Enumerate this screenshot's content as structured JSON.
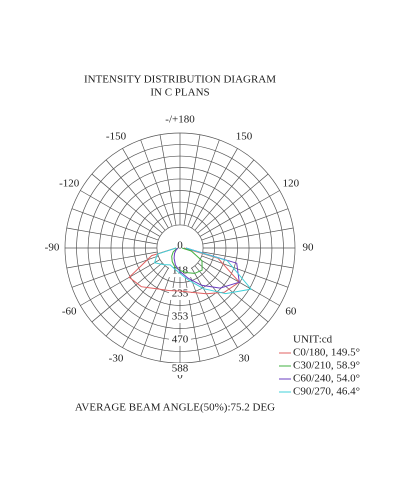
{
  "chart_data": {
    "type": "polar",
    "title": "INTENSITY DISTRIBUTION DIAGRAM",
    "subtitle": "IN C PLANS",
    "unit": "UNIT:cd",
    "footer": "AVERAGE BEAM ANGLE(50%):75.2 DEG",
    "rlim": [
      0,
      588
    ],
    "rticks": [
      0,
      118,
      235,
      353,
      470,
      588
    ],
    "angle_ticks": [
      0,
      30,
      60,
      90,
      120,
      150,
      {
        "value": 180,
        "label": "-/+180"
      },
      -150,
      -120,
      -90,
      -60,
      -30
    ],
    "angles": [
      -90,
      -75,
      -60,
      -45,
      -30,
      -15,
      0,
      15,
      30,
      45,
      60,
      75,
      90
    ],
    "series": [
      {
        "name": "C0/180, 149.5°",
        "color": "#e06060",
        "values": [
          20,
          150,
          300,
          280,
          240,
          225,
          220,
          235,
          270,
          320,
          350,
          200,
          20
        ]
      },
      {
        "name": "C30/210, 58.9°",
        "color": "#40b040",
        "values": [
          10,
          20,
          40,
          60,
          80,
          100,
          115,
          130,
          150,
          160,
          130,
          60,
          10
        ]
      },
      {
        "name": "C60/240, 54.0°",
        "color": "#6a3cc0",
        "values": [
          10,
          15,
          25,
          40,
          60,
          90,
          120,
          160,
          220,
          290,
          350,
          300,
          30
        ]
      },
      {
        "name": "C90/270, 46.4°",
        "color": "#40d0d8",
        "values": [
          20,
          120,
          150,
          120,
          100,
          110,
          130,
          170,
          240,
          330,
          420,
          250,
          30
        ]
      }
    ]
  }
}
